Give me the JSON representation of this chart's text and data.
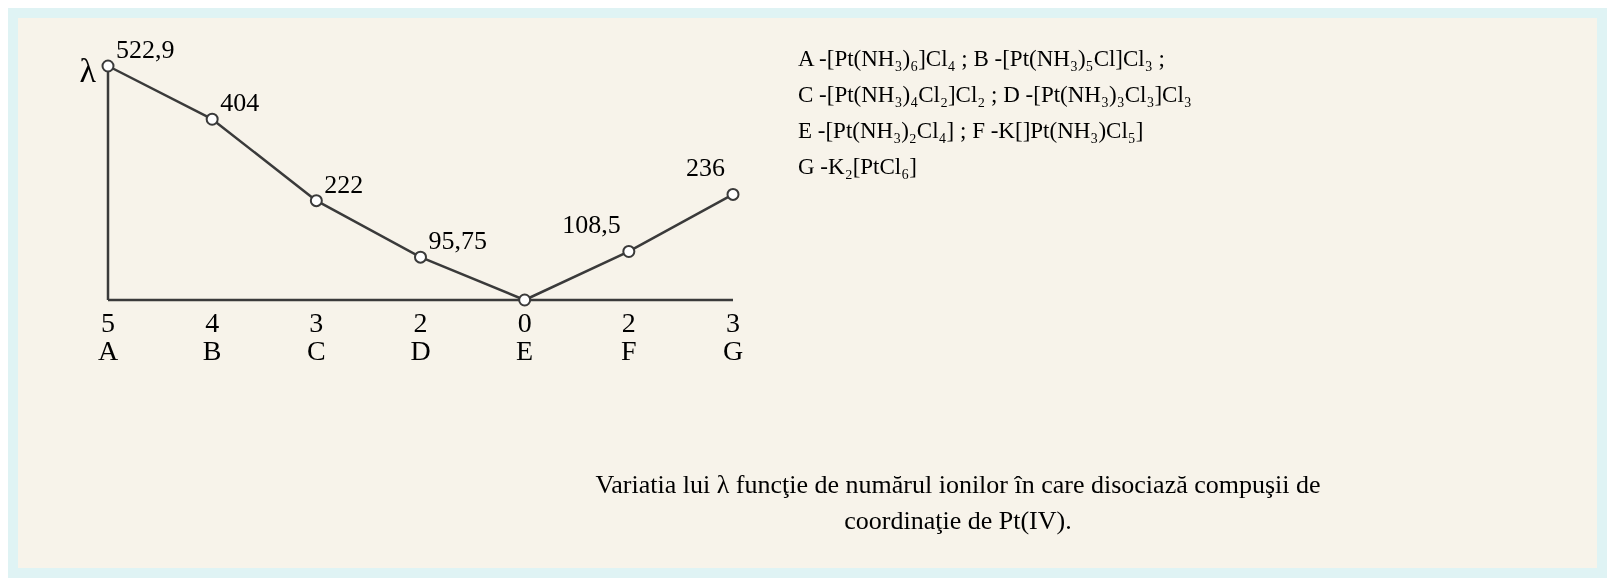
{
  "chart_data": {
    "type": "line",
    "title": "Variatia lui λ funcţie de numărul ionilor în care disociază compuşii de coordinaţie de Pt(IV).",
    "ylabel": "λ",
    "categories": [
      "5\nA",
      "4\nB",
      "3\nC",
      "2\nD",
      "0\nE",
      "2\nF",
      "3\nG"
    ],
    "values": [
      522.9,
      404,
      222,
      95.75,
      0,
      108.5,
      236
    ],
    "value_labels": [
      "522,9",
      "404",
      "222",
      "95,75",
      null,
      "108,5",
      "236"
    ],
    "color": "#3a3a3a",
    "marker": "circle",
    "line_style": "solid",
    "annotations": [
      "A -[Pt(NH₃)₆]Cl₄ ; B -[Pt(NH₃)₅Cl]Cl₃ ;",
      "C -[Pt(NH₃)₄Cl₂]Cl₂ ; D -[Pt(NH₃)₃Cl₃]Cl₃",
      "E -[Pt(NH₃)₂Cl₄] ; F -K[]Pt(NH₃)Cl₅]",
      "G -K₂[PtCl₆]"
    ]
  }
}
